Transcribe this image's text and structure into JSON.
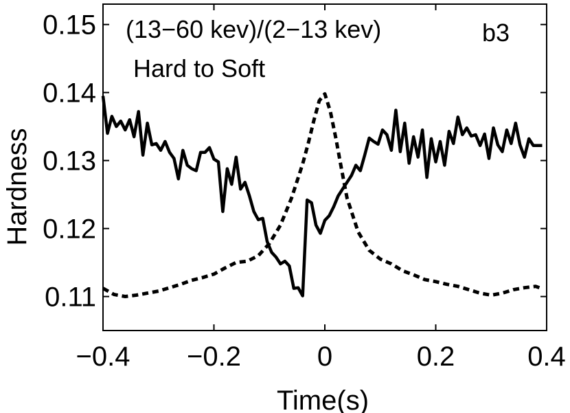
{
  "chart_data": {
    "type": "line",
    "xlabel": "Time(s)",
    "ylabel": "Hardness",
    "xlim": [
      -0.4,
      0.4
    ],
    "ylim": [
      0.105,
      0.153
    ],
    "xticks": [
      -0.4,
      -0.2,
      0,
      0.2,
      0.4
    ],
    "xtick_labels": [
      "−0.4",
      "−0.2",
      "0",
      "0.2",
      "0.4"
    ],
    "yticks": [
      0.11,
      0.12,
      0.13,
      0.14,
      0.15
    ],
    "ytick_labels": [
      "0.11",
      "0.12",
      "0.13",
      "0.14",
      "0.15"
    ],
    "grid": false,
    "annotations": {
      "ratio": "(13−60 kev)/(2−13 kev)",
      "mode": "Hard to Soft",
      "panel": "b3"
    },
    "series": [
      {
        "style": "solid",
        "color": "#000000",
        "x": [
          -0.4,
          -0.392,
          -0.384,
          -0.376,
          -0.368,
          -0.36,
          -0.352,
          -0.344,
          -0.336,
          -0.328,
          -0.32,
          -0.312,
          -0.304,
          -0.296,
          -0.288,
          -0.28,
          -0.272,
          -0.264,
          -0.256,
          -0.248,
          -0.24,
          -0.232,
          -0.224,
          -0.216,
          -0.208,
          -0.2,
          -0.192,
          -0.184,
          -0.176,
          -0.168,
          -0.16,
          -0.152,
          -0.144,
          -0.136,
          -0.128,
          -0.12,
          -0.112,
          -0.104,
          -0.096,
          -0.088,
          -0.08,
          -0.072,
          -0.064,
          -0.056,
          -0.048,
          -0.04,
          -0.032,
          -0.024,
          -0.016,
          -0.008,
          0.0,
          0.008,
          0.016,
          0.024,
          0.032,
          0.04,
          0.048,
          0.056,
          0.064,
          0.072,
          0.08,
          0.088,
          0.096,
          0.104,
          0.112,
          0.12,
          0.128,
          0.136,
          0.144,
          0.152,
          0.16,
          0.168,
          0.176,
          0.184,
          0.192,
          0.2,
          0.208,
          0.216,
          0.224,
          0.232,
          0.24,
          0.248,
          0.256,
          0.264,
          0.272,
          0.28,
          0.288,
          0.296,
          0.304,
          0.312,
          0.32,
          0.328,
          0.336,
          0.344,
          0.352,
          0.36,
          0.368,
          0.376,
          0.384,
          0.392
        ],
        "y": [
          0.1395,
          0.134,
          0.1365,
          0.135,
          0.1358,
          0.1345,
          0.136,
          0.1335,
          0.1372,
          0.1308,
          0.1355,
          0.1323,
          0.1325,
          0.1315,
          0.1328,
          0.1312,
          0.1303,
          0.1273,
          0.1315,
          0.1293,
          0.1288,
          0.1285,
          0.1312,
          0.1312,
          0.1319,
          0.1302,
          0.1298,
          0.1225,
          0.1288,
          0.1265,
          0.1305,
          0.1258,
          0.1268,
          0.1248,
          0.1225,
          0.1213,
          0.1215,
          0.1181,
          0.1165,
          0.1158,
          0.1148,
          0.1152,
          0.1145,
          0.1112,
          0.1113,
          0.1101,
          0.1242,
          0.1238,
          0.1205,
          0.1193,
          0.1212,
          0.1219,
          0.1232,
          0.1248,
          0.1258,
          0.1268,
          0.1278,
          0.1293,
          0.1285,
          0.1308,
          0.1333,
          0.1328,
          0.1324,
          0.1345,
          0.1338,
          0.1315,
          0.1374,
          0.1313,
          0.1355,
          0.1296,
          0.1335,
          0.1305,
          0.1345,
          0.1275,
          0.1332,
          0.1298,
          0.1328,
          0.1293,
          0.1343,
          0.1325,
          0.1364,
          0.1338,
          0.1348,
          0.1336,
          0.1338,
          0.1322,
          0.1339,
          0.1303,
          0.1348,
          0.1323,
          0.1313,
          0.1345,
          0.1325,
          0.1355,
          0.1323,
          0.1305,
          0.1332,
          0.1322,
          0.1322,
          0.1322
        ]
      },
      {
        "style": "dashed",
        "color": "#000000",
        "x": [
          -0.4,
          -0.38,
          -0.36,
          -0.34,
          -0.32,
          -0.3,
          -0.28,
          -0.26,
          -0.24,
          -0.22,
          -0.2,
          -0.18,
          -0.16,
          -0.14,
          -0.12,
          -0.1,
          -0.08,
          -0.06,
          -0.04,
          -0.03,
          -0.02,
          -0.01,
          0.0,
          0.01,
          0.02,
          0.03,
          0.04,
          0.06,
          0.08,
          0.1,
          0.12,
          0.14,
          0.16,
          0.18,
          0.2,
          0.22,
          0.24,
          0.26,
          0.28,
          0.3,
          0.32,
          0.34,
          0.36,
          0.38,
          0.39
        ],
        "y": [
          0.1112,
          0.1103,
          0.11,
          0.1102,
          0.1105,
          0.1108,
          0.1113,
          0.1118,
          0.1124,
          0.1128,
          0.1133,
          0.1142,
          0.115,
          0.1152,
          0.116,
          0.1178,
          0.1205,
          0.1245,
          0.1295,
          0.1325,
          0.1358,
          0.1388,
          0.1398,
          0.1372,
          0.1332,
          0.1288,
          0.1245,
          0.1195,
          0.1168,
          0.1155,
          0.1148,
          0.1138,
          0.1132,
          0.1125,
          0.1122,
          0.1118,
          0.1115,
          0.111,
          0.1105,
          0.1102,
          0.1105,
          0.111,
          0.1113,
          0.1115,
          0.1112
        ]
      }
    ]
  }
}
